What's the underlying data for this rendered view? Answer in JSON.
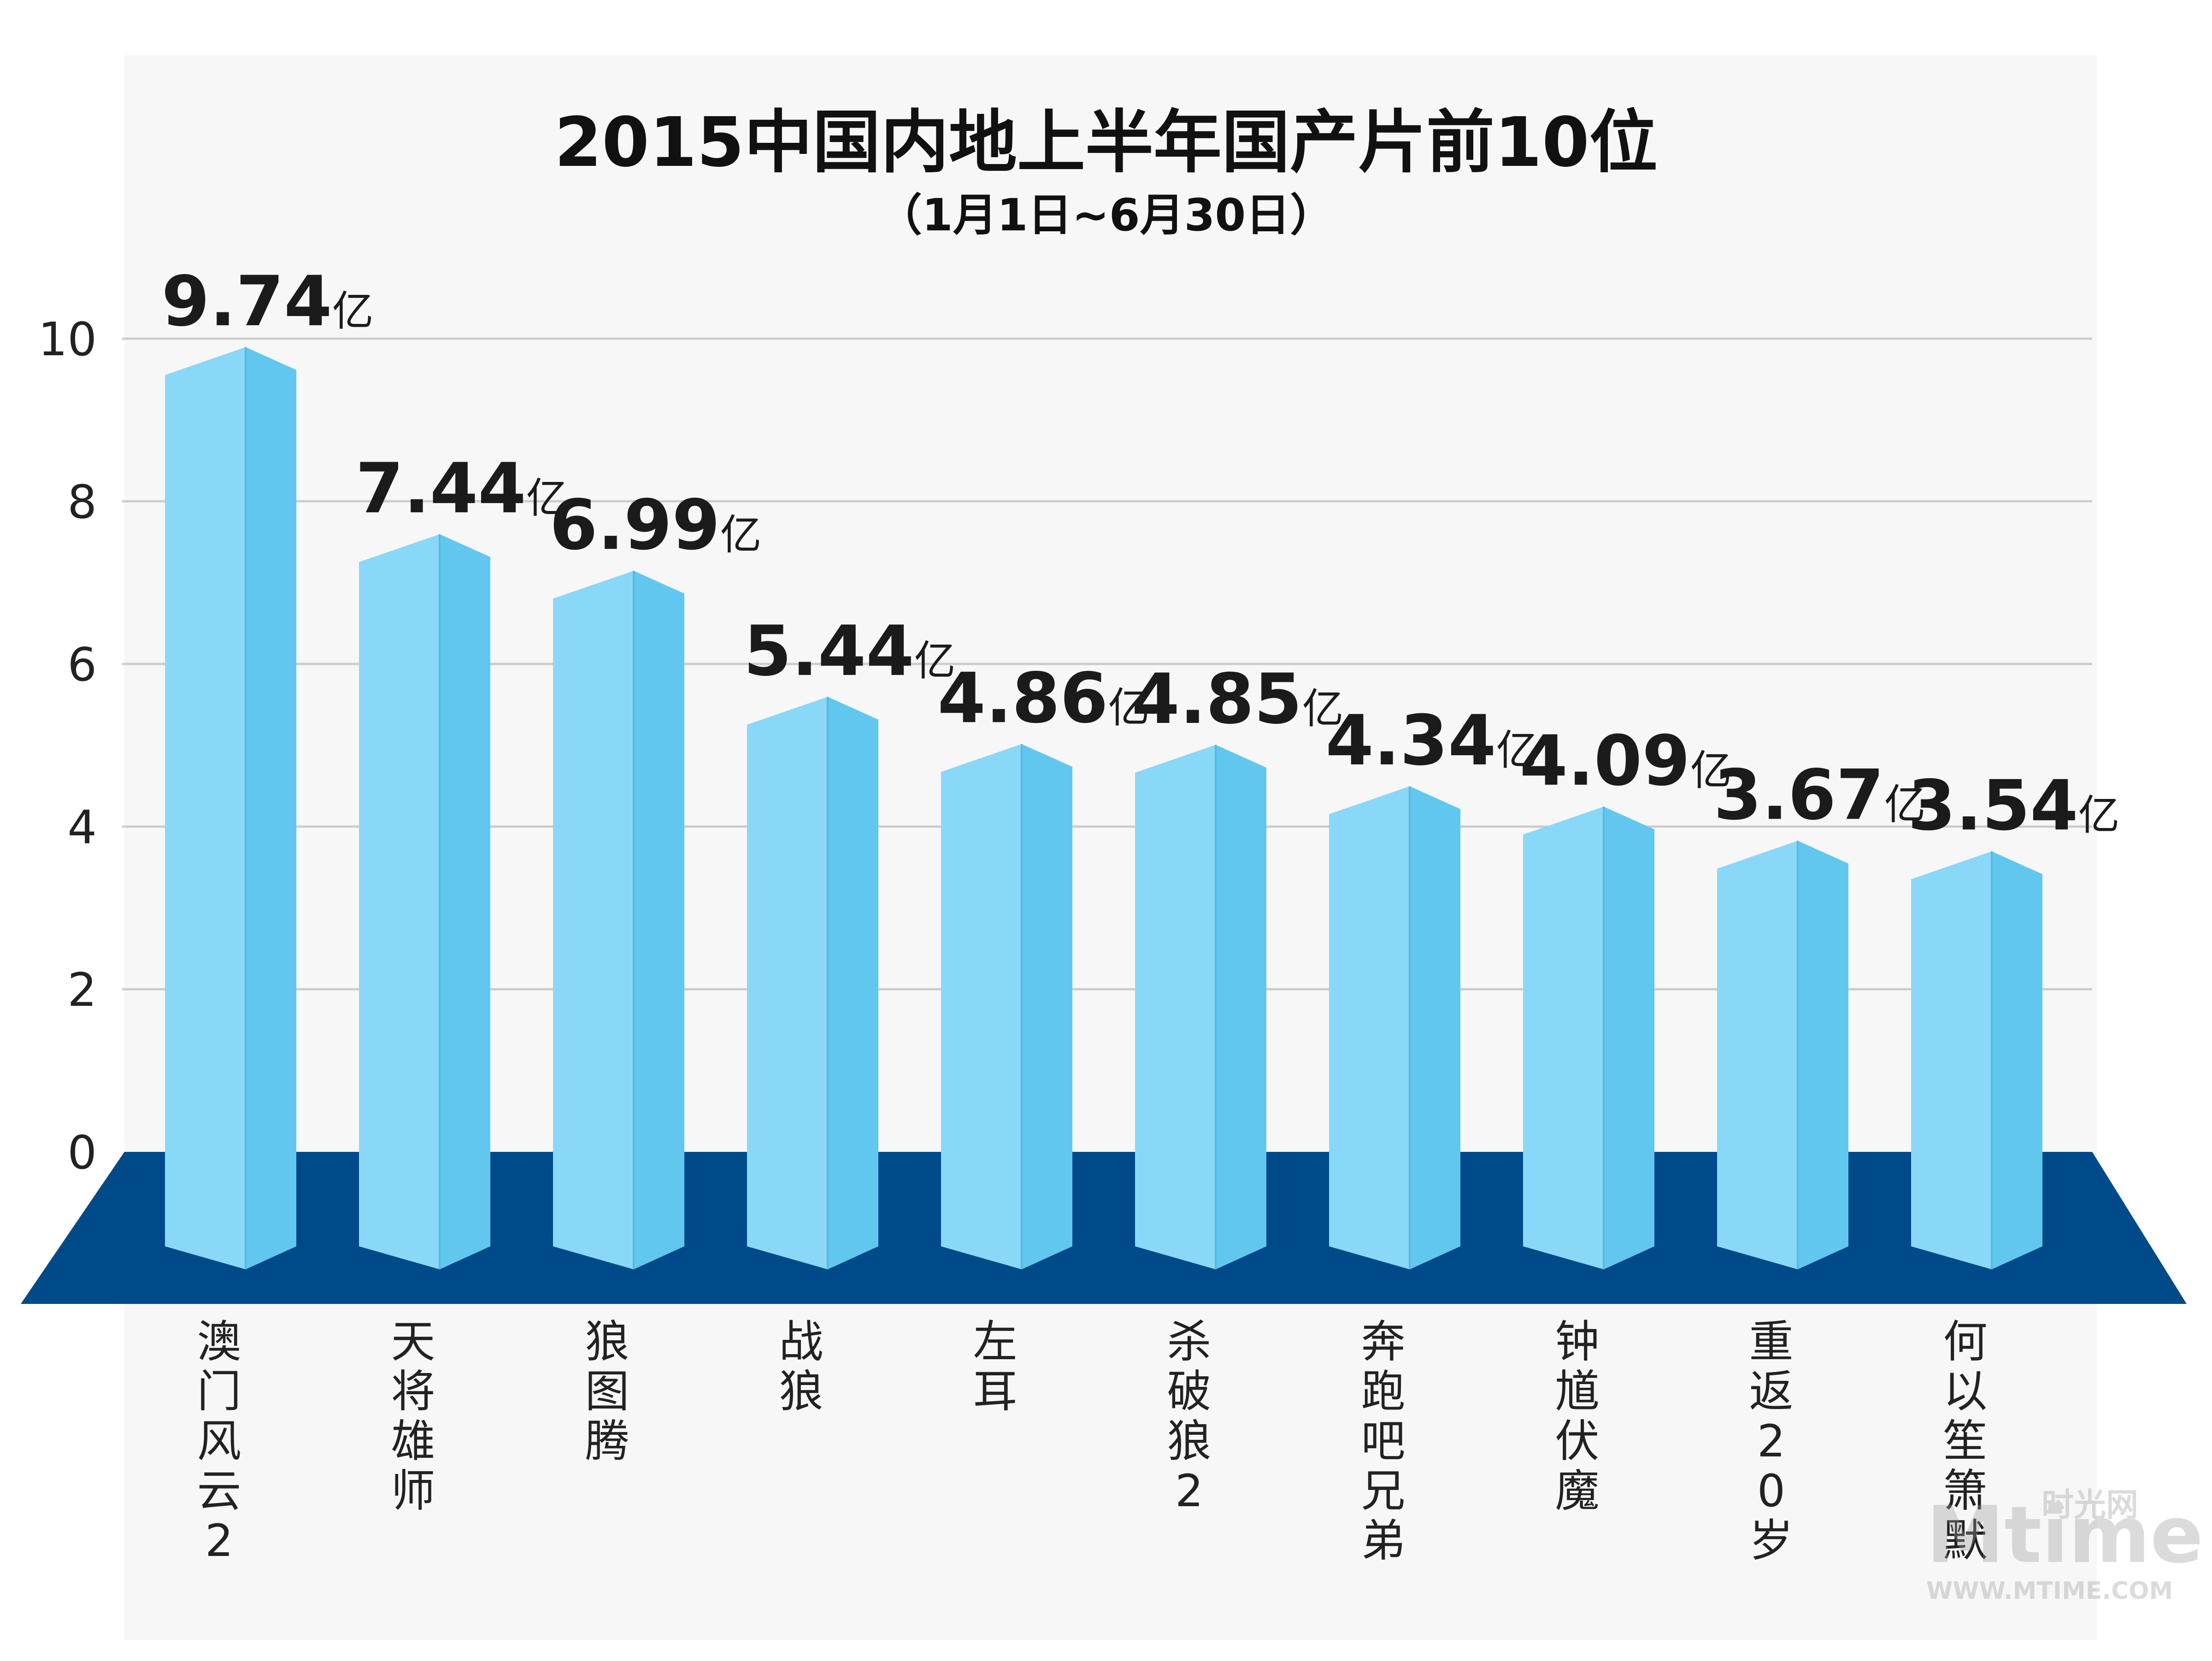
{
  "chart_data": {
    "type": "bar",
    "title": "2015中国内地上半年国产片前10位",
    "subtitle": "（1月1日~6月30日）",
    "xlabel": "",
    "ylabel": "",
    "ylim": [
      0,
      10
    ],
    "yticks": [
      "0",
      "2",
      "4",
      "6",
      "8",
      "10"
    ],
    "grid": true,
    "unit": "亿",
    "categories": [
      "澳门风云2",
      "天将雄师",
      "狼图腾",
      "战狼",
      "左耳",
      "杀破狼2",
      "奔跑吧兄弟",
      "钟馗伏魔",
      "重返20岁",
      "何以笙箫默"
    ],
    "values": [
      9.74,
      7.44,
      6.99,
      5.44,
      4.86,
      4.85,
      4.34,
      4.09,
      3.67,
      3.54
    ],
    "value_labels": [
      "9.74",
      "7.44",
      "6.99",
      "5.44",
      "4.86",
      "4.85",
      "4.34",
      "4.09",
      "3.67",
      "3.54"
    ]
  },
  "colors": {
    "bar_front": "#8ad8f8",
    "bar_side": "#62c7ef",
    "bar_edge": "#58b8e0",
    "floor": "#004a8a",
    "grid": "#cccccc",
    "text": "#222222",
    "panel": "#f7f7f7"
  },
  "watermark": {
    "logo": "Mtime",
    "cn": "时光网",
    "url": "WWW.MTIME.COM"
  }
}
